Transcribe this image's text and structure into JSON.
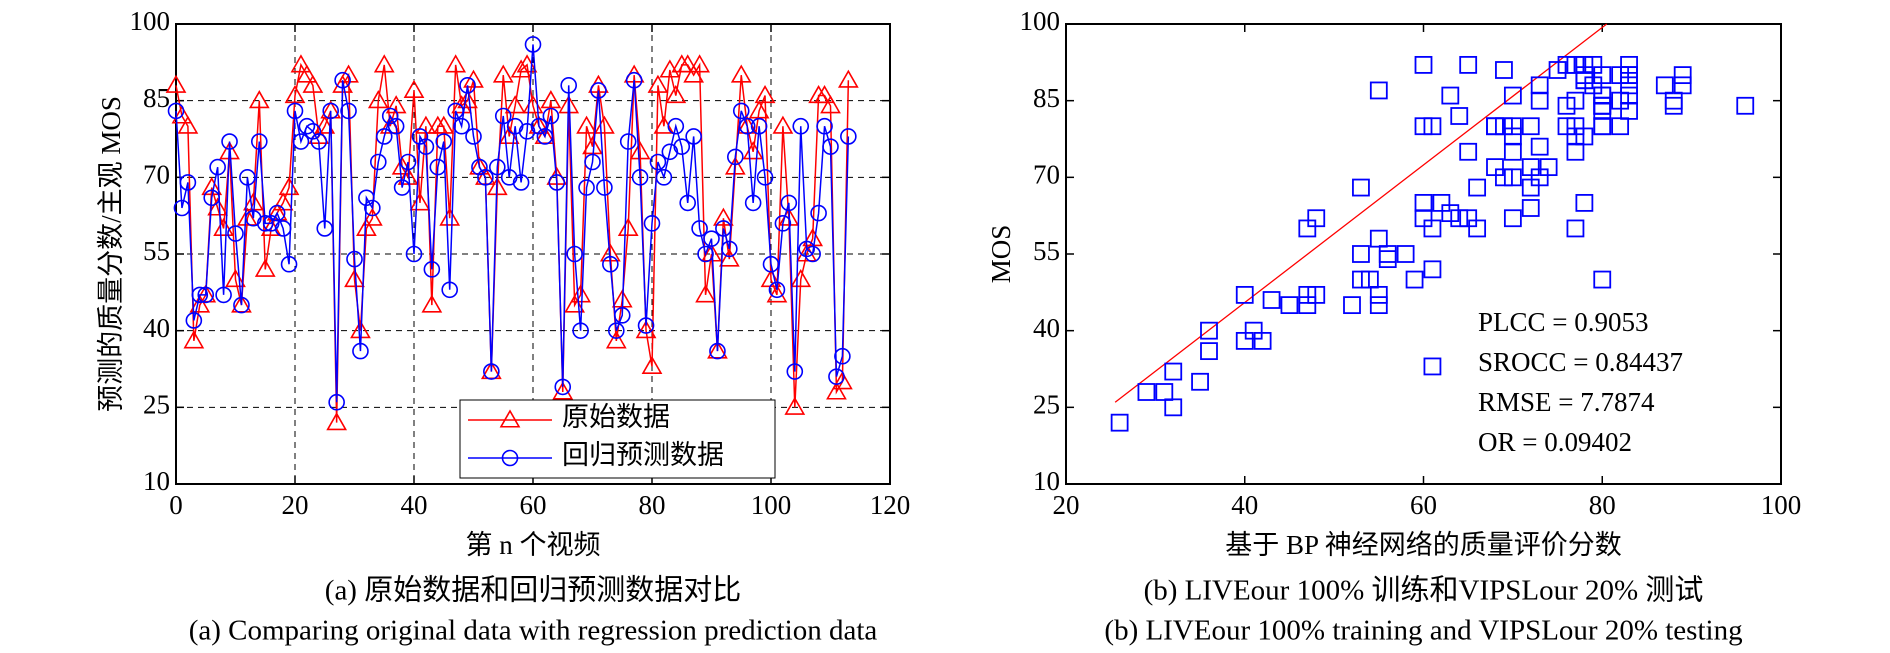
{
  "chart_data": [
    {
      "type": "line",
      "x_label": "第 n 个视频",
      "y_label": "预测的质量分数/主观 MOS",
      "caption": "(a) 原始数据和回归预测数据对比",
      "caption_en": "(a) Comparing original data with regression prediction data",
      "xlim": [
        0,
        120
      ],
      "xticks": [
        0,
        20,
        40,
        60,
        80,
        100,
        120
      ],
      "ylim": [
        10,
        100
      ],
      "yticks": [
        10,
        25,
        40,
        55,
        70,
        85,
        100
      ],
      "grid": true,
      "legend": "lower center",
      "x": [
        0,
        1,
        2,
        3,
        4,
        5,
        6,
        7,
        8,
        9,
        10,
        11,
        12,
        13,
        14,
        15,
        16,
        17,
        18,
        19,
        20,
        21,
        22,
        23,
        24,
        25,
        26,
        27,
        28,
        29,
        30,
        31,
        32,
        33,
        34,
        35,
        36,
        37,
        38,
        39,
        40,
        41,
        42,
        43,
        44,
        45,
        46,
        47,
        48,
        49,
        50,
        51,
        52,
        53,
        54,
        55,
        56,
        57,
        58,
        59,
        60,
        61,
        62,
        63,
        64,
        65,
        66,
        67,
        68,
        69,
        70,
        71,
        72,
        73,
        74,
        75,
        76,
        77,
        78,
        79,
        80,
        81,
        82,
        83,
        84,
        85,
        86,
        87,
        88,
        89,
        90,
        91,
        92,
        93,
        94,
        95,
        96,
        97,
        98,
        99,
        100,
        101,
        102,
        103,
        104,
        105,
        106,
        107,
        108,
        109,
        110,
        111,
        112,
        113
      ],
      "series": [
        {
          "name": "原始数据",
          "color": "#ff0000",
          "marker": "triangle",
          "values": [
            88,
            82,
            80,
            38,
            45,
            47,
            68,
            64,
            60,
            75,
            50,
            45,
            62,
            65,
            85,
            52,
            60,
            63,
            65,
            68,
            86,
            92,
            90,
            88,
            78,
            80,
            83,
            22,
            88,
            90,
            50,
            40,
            60,
            62,
            85,
            92,
            80,
            84,
            72,
            70,
            87,
            65,
            80,
            45,
            80,
            80,
            62,
            92,
            84,
            85,
            89,
            72,
            70,
            32,
            68,
            90,
            78,
            84,
            91,
            92,
            84,
            80,
            78,
            85,
            70,
            28,
            84,
            45,
            47,
            80,
            76,
            88,
            80,
            55,
            38,
            46,
            60,
            90,
            75,
            40,
            33,
            88,
            80,
            91,
            86,
            92,
            92,
            90,
            92,
            47,
            55,
            36,
            62,
            54,
            72,
            90,
            80,
            75,
            83,
            86,
            50,
            47,
            80,
            62,
            25,
            50,
            55,
            58,
            86,
            86,
            84,
            28,
            30,
            89
          ]
        },
        {
          "name": "回归预测数据",
          "color": "#0000ff",
          "marker": "circle",
          "values": [
            83,
            64,
            69,
            42,
            47,
            47,
            66,
            72,
            47,
            77,
            59,
            45,
            70,
            62,
            77,
            61,
            61,
            63,
            60,
            53,
            83,
            77,
            80,
            79,
            77,
            60,
            83,
            26,
            89,
            83,
            54,
            36,
            66,
            64,
            73,
            78,
            82,
            80,
            68,
            73,
            55,
            78,
            76,
            52,
            72,
            77,
            48,
            83,
            80,
            88,
            78,
            72,
            70,
            32,
            72,
            82,
            70,
            80,
            69,
            79,
            96,
            80,
            78,
            82,
            69,
            29,
            88,
            55,
            40,
            68,
            73,
            87,
            68,
            53,
            40,
            43,
            77,
            89,
            70,
            41,
            61,
            73,
            70,
            75,
            80,
            76,
            65,
            78,
            60,
            55,
            58,
            36,
            60,
            56,
            74,
            83,
            80,
            65,
            80,
            70,
            53,
            48,
            61,
            65,
            32,
            80,
            56,
            55,
            63,
            80,
            76,
            31,
            35,
            78
          ]
        }
      ]
    },
    {
      "type": "scatter",
      "x_label": "基于 BP 神经网络的质量评价分数",
      "y_label": "MOS",
      "caption": "(b) LIVEour 100% 训练和VIPSLour 20% 测试",
      "caption_en": "(b) LIVEour 100% training and VIPSLour 20% testing",
      "xlim": [
        20,
        100
      ],
      "xticks": [
        20,
        40,
        60,
        80,
        100
      ],
      "ylim": [
        10,
        100
      ],
      "yticks": [
        10,
        25,
        40,
        55,
        70,
        85,
        100
      ],
      "color": "#0000ff",
      "fit_color": "#ff0000",
      "fit_x": [
        25.5,
        80.5
      ],
      "fit_y": [
        26,
        100
      ],
      "annotations": [
        "PLCC = 0.9053",
        "SROCC = 0.84437",
        "RMSE = 7.7874",
        "OR = 0.09402"
      ],
      "x": [
        83,
        64,
        69,
        42,
        47,
        47,
        66,
        72,
        47,
        77,
        59,
        45,
        70,
        62,
        77,
        61,
        61,
        63,
        60,
        53,
        83,
        77,
        80,
        79,
        77,
        60,
        83,
        26,
        89,
        83,
        54,
        36,
        66,
        64,
        73,
        78,
        82,
        80,
        68,
        73,
        55,
        78,
        76,
        52,
        72,
        77,
        48,
        83,
        80,
        88,
        78,
        72,
        70,
        32,
        72,
        82,
        70,
        80,
        69,
        79,
        96,
        80,
        78,
        82,
        69,
        29,
        88,
        55,
        40,
        68,
        73,
        87,
        68,
        53,
        40,
        43,
        77,
        89,
        70,
        41,
        61,
        73,
        70,
        75,
        80,
        76,
        65,
        78,
        60,
        55,
        58,
        36,
        60,
        56,
        74,
        83,
        80,
        65,
        80,
        70,
        53,
        48,
        61,
        65,
        32,
        80,
        56,
        55,
        63,
        80,
        76,
        31,
        35,
        78
      ],
      "y": [
        88,
        82,
        80,
        38,
        45,
        47,
        68,
        64,
        60,
        75,
        50,
        45,
        62,
        65,
        85,
        52,
        60,
        63,
        65,
        68,
        86,
        92,
        90,
        88,
        78,
        80,
        83,
        22,
        88,
        90,
        50,
        40,
        60,
        62,
        85,
        92,
        80,
        84,
        72,
        70,
        87,
        65,
        80,
        45,
        80,
        80,
        62,
        92,
        84,
        85,
        89,
        72,
        70,
        32,
        68,
        90,
        78,
        84,
        91,
        92,
        84,
        80,
        78,
        85,
        70,
        28,
        84,
        45,
        47,
        80,
        76,
        88,
        80,
        55,
        38,
        46,
        60,
        90,
        75,
        40,
        33,
        88,
        80,
        91,
        86,
        92,
        92,
        90,
        92,
        47,
        55,
        36,
        62,
        54,
        72,
        90,
        80,
        75,
        83,
        86,
        50,
        47,
        80,
        62,
        25,
        50,
        55,
        58,
        86,
        86,
        84,
        28,
        30,
        89
      ]
    }
  ]
}
